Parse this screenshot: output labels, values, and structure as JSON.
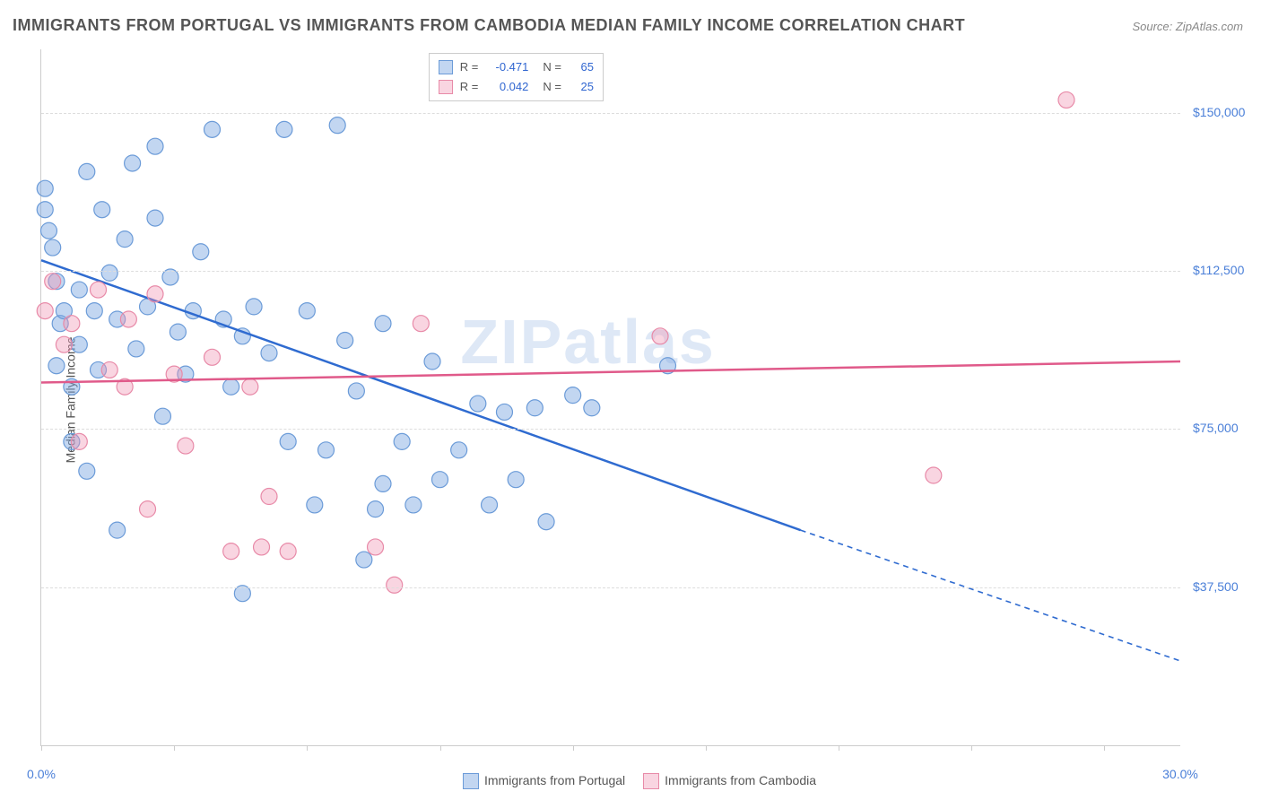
{
  "title": "IMMIGRANTS FROM PORTUGAL VS IMMIGRANTS FROM CAMBODIA MEDIAN FAMILY INCOME CORRELATION CHART",
  "source": "Source: ZipAtlas.com",
  "watermark": "ZIPatlas",
  "ylabel": "Median Family Income",
  "chart": {
    "type": "scatter",
    "xlim": [
      0,
      30
    ],
    "ylim": [
      0,
      165000
    ],
    "x_tick_positions": [
      0,
      3.5,
      7,
      10.5,
      14,
      17.5,
      21,
      24.5,
      28
    ],
    "x_tick_labels_shown": {
      "0": "0.0%",
      "30": "30.0%"
    },
    "y_ticks": [
      37500,
      75000,
      112500,
      150000
    ],
    "y_tick_labels": [
      "$37,500",
      "$75,000",
      "$112,500",
      "$150,000"
    ],
    "grid_color": "#dddddd",
    "axis_color": "#cccccc",
    "background_color": "#ffffff",
    "label_color": "#555555",
    "tick_label_color": "#4a7fd8"
  },
  "series": [
    {
      "name": "Immigrants from Portugal",
      "color_fill": "rgba(120,165,225,0.45)",
      "color_stroke": "#6b9bd8",
      "line_color": "#2f6bd0",
      "marker_r": 9,
      "R": "-0.471",
      "N": "65",
      "regression": {
        "x1": 0,
        "y1": 115000,
        "x2": 20,
        "y2": 51000,
        "x2_dash": 30,
        "y2_dash": 20000
      },
      "points": [
        [
          0.1,
          132000
        ],
        [
          0.1,
          127000
        ],
        [
          0.2,
          122000
        ],
        [
          0.3,
          118000
        ],
        [
          0.4,
          110000
        ],
        [
          0.4,
          90000
        ],
        [
          0.5,
          100000
        ],
        [
          0.6,
          103000
        ],
        [
          0.8,
          85000
        ],
        [
          0.8,
          72000
        ],
        [
          1.0,
          108000
        ],
        [
          1.0,
          95000
        ],
        [
          1.2,
          136000
        ],
        [
          1.2,
          65000
        ],
        [
          1.4,
          103000
        ],
        [
          1.5,
          89000
        ],
        [
          1.6,
          127000
        ],
        [
          1.8,
          112000
        ],
        [
          2.0,
          101000
        ],
        [
          2.0,
          51000
        ],
        [
          2.2,
          120000
        ],
        [
          2.4,
          138000
        ],
        [
          2.5,
          94000
        ],
        [
          2.8,
          104000
        ],
        [
          3.0,
          125000
        ],
        [
          3.0,
          142000
        ],
        [
          3.2,
          78000
        ],
        [
          3.4,
          111000
        ],
        [
          3.6,
          98000
        ],
        [
          3.8,
          88000
        ],
        [
          4.0,
          103000
        ],
        [
          4.2,
          117000
        ],
        [
          4.5,
          146000
        ],
        [
          4.8,
          101000
        ],
        [
          5.0,
          85000
        ],
        [
          5.3,
          97000
        ],
        [
          5.3,
          36000
        ],
        [
          5.6,
          104000
        ],
        [
          6.0,
          93000
        ],
        [
          6.4,
          146000
        ],
        [
          6.5,
          72000
        ],
        [
          7.0,
          103000
        ],
        [
          7.2,
          57000
        ],
        [
          7.5,
          70000
        ],
        [
          7.8,
          147000
        ],
        [
          8.0,
          96000
        ],
        [
          8.3,
          84000
        ],
        [
          8.5,
          44000
        ],
        [
          8.8,
          56000
        ],
        [
          9.0,
          62000
        ],
        [
          9.0,
          100000
        ],
        [
          9.5,
          72000
        ],
        [
          9.8,
          57000
        ],
        [
          10.3,
          91000
        ],
        [
          10.5,
          63000
        ],
        [
          11.0,
          70000
        ],
        [
          11.5,
          81000
        ],
        [
          11.8,
          57000
        ],
        [
          12.2,
          79000
        ],
        [
          12.5,
          63000
        ],
        [
          13.0,
          80000
        ],
        [
          13.3,
          53000
        ],
        [
          14.0,
          83000
        ],
        [
          14.5,
          80000
        ],
        [
          16.5,
          90000
        ]
      ]
    },
    {
      "name": "Immigrants from Cambodia",
      "color_fill": "rgba(240,150,180,0.40)",
      "color_stroke": "#e88aa8",
      "line_color": "#e05a8a",
      "marker_r": 9,
      "R": "0.042",
      "N": "25",
      "regression": {
        "x1": 0,
        "y1": 86000,
        "x2": 30,
        "y2": 91000
      },
      "points": [
        [
          0.1,
          103000
        ],
        [
          0.3,
          110000
        ],
        [
          0.6,
          95000
        ],
        [
          0.8,
          100000
        ],
        [
          1.0,
          72000
        ],
        [
          1.5,
          108000
        ],
        [
          1.8,
          89000
        ],
        [
          2.2,
          85000
        ],
        [
          2.3,
          101000
        ],
        [
          2.8,
          56000
        ],
        [
          3.0,
          107000
        ],
        [
          3.5,
          88000
        ],
        [
          3.8,
          71000
        ],
        [
          4.5,
          92000
        ],
        [
          5.0,
          46000
        ],
        [
          5.5,
          85000
        ],
        [
          5.8,
          47000
        ],
        [
          6.0,
          59000
        ],
        [
          6.5,
          46000
        ],
        [
          8.8,
          47000
        ],
        [
          9.3,
          38000
        ],
        [
          10.0,
          100000
        ],
        [
          16.3,
          97000
        ],
        [
          23.5,
          64000
        ],
        [
          27.0,
          153000
        ]
      ]
    }
  ],
  "top_legend_labels": {
    "R": "R =",
    "N": "N ="
  },
  "bottom_legend": {
    "items": [
      "Immigrants from Portugal",
      "Immigrants from Cambodia"
    ]
  }
}
